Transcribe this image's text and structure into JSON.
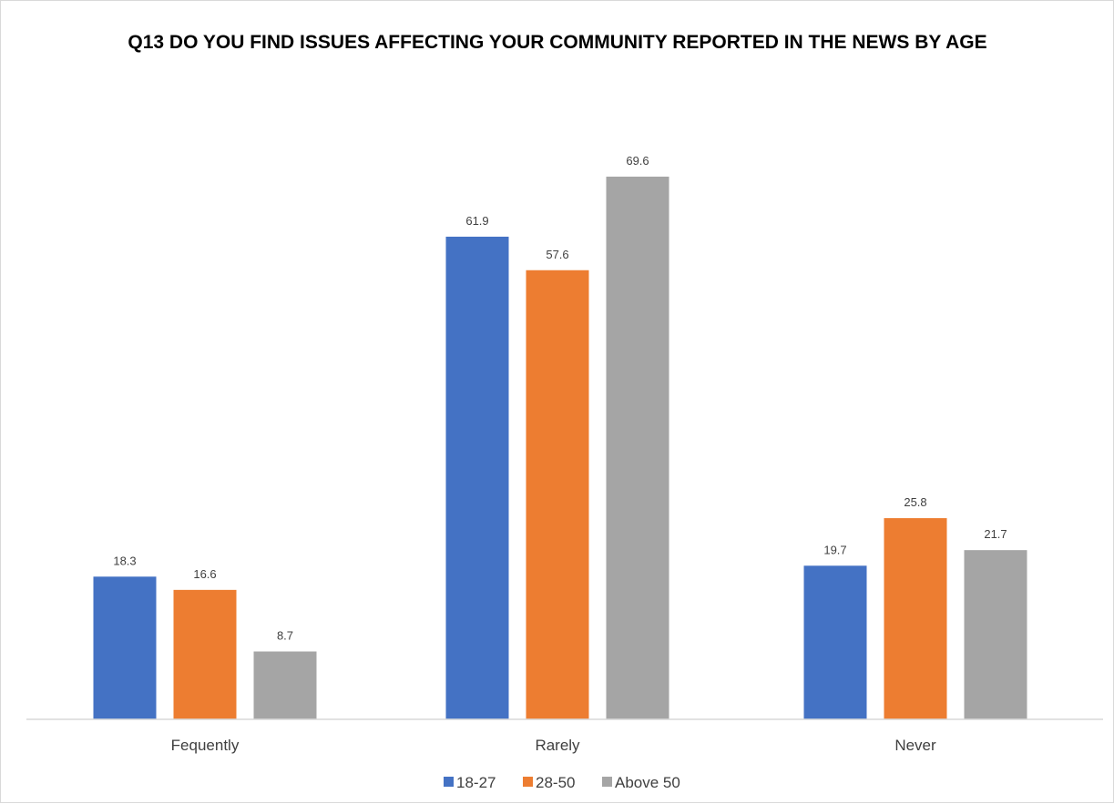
{
  "chart_data": {
    "type": "bar",
    "title": "Q13  DO YOU FIND ISSUES AFFECTING YOUR COMMUNITY REPORTED IN THE NEWS BY AGE",
    "categories": [
      "Fequently",
      "Rarely",
      "Never"
    ],
    "series": [
      {
        "name": "18-27",
        "values": [
          18.3,
          61.9,
          19.7
        ],
        "color": "#4472c4"
      },
      {
        "name": "28-50",
        "values": [
          16.6,
          57.6,
          25.8
        ],
        "color": "#ed7d31"
      },
      {
        "name": "Above 50",
        "values": [
          8.7,
          69.6,
          21.7
        ],
        "color": "#a5a5a5"
      }
    ],
    "data_labels": [
      [
        "18.3",
        "61.9",
        "19.7"
      ],
      [
        "16.6",
        "57.6",
        "25.8"
      ],
      [
        "8.7",
        "69.6",
        "21.7"
      ]
    ],
    "ylim": [
      0,
      80
    ],
    "grid": false,
    "legend_position": "bottom"
  }
}
